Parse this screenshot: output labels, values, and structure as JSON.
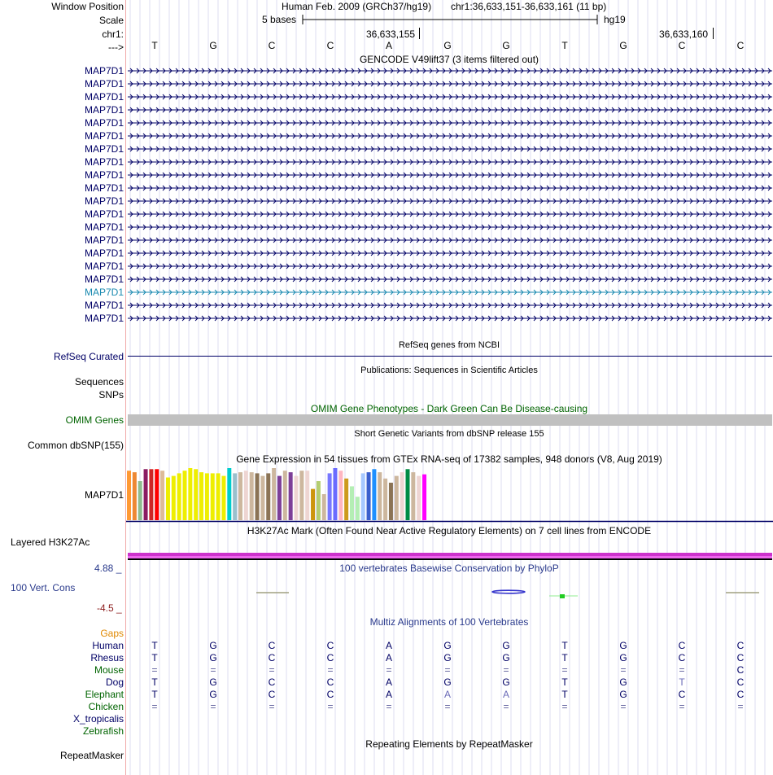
{
  "header": {
    "window_position_label": "Window Position",
    "assembly": "Human Feb. 2009 (GRCh37/hg19)",
    "position": "chr1:36,633,151-36,633,161 (11 bp)",
    "scale_label": "Scale",
    "scale_text": "5 bases",
    "scale_db": "hg19",
    "chrom_label": "chr1:",
    "coord_a": "36,633,155",
    "coord_b": "36,633,160",
    "strand_label": "--->",
    "bases": [
      "T",
      "G",
      "C",
      "C",
      "A",
      "G",
      "G",
      "T",
      "G",
      "C",
      "C"
    ]
  },
  "gencode": {
    "title": "GENCODE V49lift37 (3 items filtered out)",
    "genes": [
      "MAP7D1",
      "MAP7D1",
      "MAP7D1",
      "MAP7D1",
      "MAP7D1",
      "MAP7D1",
      "MAP7D1",
      "MAP7D1",
      "MAP7D1",
      "MAP7D1",
      "MAP7D1",
      "MAP7D1",
      "MAP7D1",
      "MAP7D1",
      "MAP7D1",
      "MAP7D1",
      "MAP7D1",
      "MAP7D1",
      "MAP7D1",
      "MAP7D1"
    ],
    "highlight_index": 17,
    "colors": {
      "normal": "#000066",
      "highlight": "#1a8ab0"
    }
  },
  "tracks": {
    "refseq_title": "RefSeq genes from NCBI",
    "refseq_label": "RefSeq Curated",
    "pubs_title": "Publications: Sequences in Scientific Articles",
    "sequences_label": "Sequences",
    "snps_label": "SNPs",
    "omim_title": "OMIM Gene Phenotypes - Dark Green Can Be Disease-causing",
    "omim_label": "OMIM Genes",
    "dbsnp_title": "Short Genetic Variants from dbSNP release 155",
    "dbsnp_label": "Common dbSNP(155)",
    "gtex_title": "Gene Expression in 54 tissues from GTEx RNA-seq of 17382 samples, 948 donors (V8, Aug 2019)",
    "gtex_label": "MAP7D1",
    "h3k_title": "H3K27Ac Mark (Often Found Near Active Regulatory Elements) on 7 cell lines from ENCODE",
    "h3k_label": "Layered H3K27Ac",
    "cons_title": "100 vertebrates Basewise Conservation by PhyloP",
    "cons_label": "100 Vert. Cons",
    "cons_max": "4.88 _",
    "cons_min": "-4.5 _",
    "multiz_title": "Multiz Alignments of 100 Vertebrates",
    "repeat_title": "Repeating Elements by RepeatMasker",
    "repeat_label": "RepeatMasker"
  },
  "gtex_bars": {
    "values": [
      0.95,
      0.92,
      0.75,
      0.98,
      0.98,
      0.98,
      0.95,
      0.82,
      0.85,
      0.9,
      0.95,
      1.0,
      0.98,
      0.92,
      0.9,
      0.9,
      0.9,
      0.85,
      1.0,
      0.9,
      0.92,
      0.95,
      0.92,
      0.9,
      0.85,
      0.9,
      1.0,
      0.85,
      0.95,
      0.92,
      0.85,
      0.95,
      0.95,
      0.6,
      0.75,
      0.5,
      0.9,
      1.0,
      0.95,
      0.8,
      0.65,
      0.45,
      0.9,
      0.92,
      0.98,
      0.92,
      0.8,
      0.72,
      0.85,
      0.92,
      0.98,
      0.92,
      0.85,
      0.88
    ],
    "colors": [
      "#ff9933",
      "#ee8833",
      "#8fbc8f",
      "#8b1c62",
      "#cd2626",
      "#ff0000",
      "#ddbb99",
      "#eeee00",
      "#eeee00",
      "#eeee00",
      "#eeee00",
      "#eeee00",
      "#eeee00",
      "#eeee00",
      "#eeee00",
      "#eeee00",
      "#eeee00",
      "#eeee00",
      "#00cdcd",
      "#9ac0cd",
      "#cdb79e",
      "#eed5d2",
      "#cdb79e",
      "#8b7355",
      "#cdb79e",
      "#8b7355",
      "#cdb79e",
      "#7d3f98",
      "#cdb79e",
      "#7d3f98",
      "#eed5d2",
      "#cdb79e",
      "#eed5d2",
      "#cd950c",
      "#b4cd70",
      "#cdb79e",
      "#7777ff",
      "#6b6bff",
      "#ffb6c1",
      "#cd9b1d",
      "#b4eeb4",
      "#b4eeb4",
      "#a6c8ff",
      "#3a5fcd",
      "#1e90ff",
      "#cdb79e",
      "#cdb79e",
      "#8b7355",
      "#cdb79e",
      "#eed5d2",
      "#008b45",
      "#cdb79e",
      "#eed5d2",
      "#ff00ff"
    ]
  },
  "multiz": {
    "gaps_label": "Gaps",
    "species": [
      {
        "name": "Human",
        "color": "#000066",
        "bases": [
          "T",
          "G",
          "C",
          "C",
          "A",
          "G",
          "G",
          "T",
          "G",
          "C",
          "C"
        ]
      },
      {
        "name": "Rhesus",
        "color": "#000066",
        "bases": [
          "T",
          "G",
          "C",
          "C",
          "A",
          "G",
          "G",
          "T",
          "G",
          "C",
          "C"
        ]
      },
      {
        "name": "Mouse",
        "color": "#006400",
        "bases": [
          "=",
          "=",
          "=",
          "=",
          "=",
          "=",
          "=",
          "=",
          "=",
          "=",
          "C"
        ]
      },
      {
        "name": "Dog",
        "color": "#000066",
        "bases": [
          "T",
          "G",
          "C",
          "C",
          "A",
          "G",
          "G",
          "T",
          "G",
          "T",
          "C"
        ]
      },
      {
        "name": "Elephant",
        "color": "#006400",
        "bases": [
          "T",
          "G",
          "C",
          "C",
          "A",
          "A",
          "A",
          "T",
          "G",
          "C",
          "C"
        ]
      },
      {
        "name": "Chicken",
        "color": "#006400",
        "bases": [
          "=",
          "=",
          "=",
          "=",
          "=",
          "=",
          "=",
          "=",
          "=",
          "=",
          "="
        ]
      },
      {
        "name": "X_tropicalis",
        "color": "#000066",
        "bases": []
      },
      {
        "name": "Zebrafish",
        "color": "#006400",
        "bases": []
      }
    ],
    "colors": {
      "gaps": "#e08800",
      "faded": "#6a6ab8",
      "eq": "#5a5a9a"
    }
  }
}
